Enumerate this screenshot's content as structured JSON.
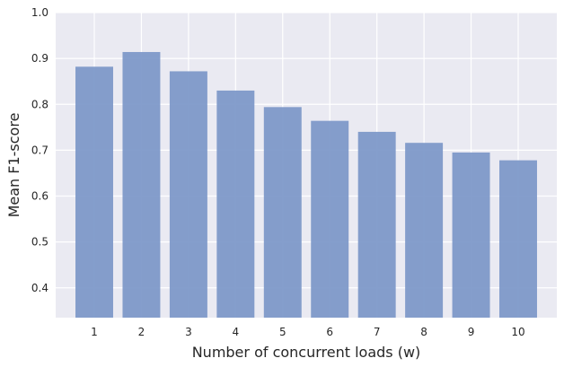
{
  "chart_data": {
    "type": "bar",
    "categories": [
      "1",
      "2",
      "3",
      "4",
      "5",
      "6",
      "7",
      "8",
      "9",
      "10"
    ],
    "values": [
      0.882,
      0.914,
      0.872,
      0.83,
      0.794,
      0.764,
      0.74,
      0.716,
      0.695,
      0.678
    ],
    "title": "",
    "xlabel": "Number of concurrent loads (w)",
    "ylabel": "Mean F1-score",
    "ylim": [
      0.335,
      1.0
    ],
    "yticks": [
      0.4,
      0.5,
      0.6,
      0.7,
      0.8,
      0.9,
      1.0
    ],
    "ytick_labels": [
      "0.4",
      "0.5",
      "0.6",
      "0.7",
      "0.8",
      "0.9",
      "1.0"
    ],
    "grid": true,
    "colors": {
      "bar": "#7b96c8",
      "background": "#eaeaf2",
      "grid": "#ffffff"
    }
  }
}
